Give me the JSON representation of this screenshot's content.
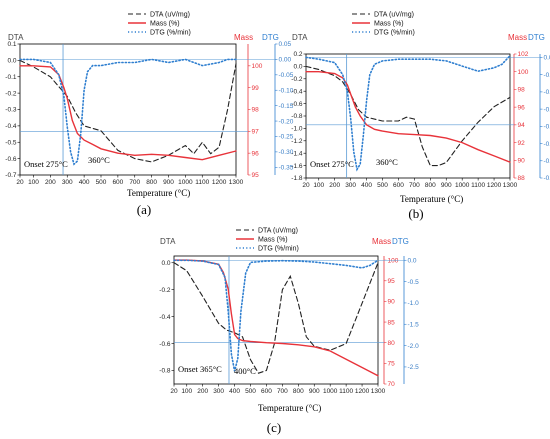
{
  "colors": {
    "dta": "#222222",
    "mass": "#e8333a",
    "dtg": "#2f7fd0",
    "guide": "#5b9bd5"
  },
  "chart_data": [
    {
      "type": "line",
      "label": "(a)",
      "xlabel": "Temperature (°C)",
      "x_ticks": [
        20,
        100,
        200,
        300,
        400,
        500,
        600,
        700,
        800,
        900,
        1000,
        1100,
        1200,
        1300
      ],
      "axes": {
        "left": {
          "title": "DTA",
          "ylim": [
            -0.7,
            0.1
          ],
          "ticks": [
            -0.7,
            -0.6,
            -0.5,
            -0.4,
            -0.3,
            -0.2,
            -0.1,
            0.0,
            0.1
          ],
          "tick_labels": [
            "-0.7",
            "-0.6",
            "-0.5",
            "-0.4",
            "-0.3",
            "-0.2",
            "-0.1",
            "0.0",
            "0.1"
          ]
        },
        "mid": {
          "title": "Mass",
          "ylim": [
            95,
            101
          ],
          "ticks": [
            95,
            96,
            97,
            98,
            99,
            100
          ],
          "tick_labels": [
            "95",
            "96",
            "97",
            "98",
            "99",
            "100"
          ]
        },
        "right": {
          "title": "DTG",
          "ylim": [
            -0.375,
            0.05
          ],
          "ticks": [
            0.05,
            0,
            -0.05,
            -0.1,
            -0.15,
            -0.2,
            -0.25,
            -0.3,
            -0.35
          ],
          "tick_labels": [
            "0.05",
            "0.00",
            "-0.05",
            "-0.10",
            "-0.15",
            "-0.20",
            "-0.25",
            "-0.30",
            "-0.35"
          ]
        }
      },
      "annotations": [
        "Onset 275°C",
        "360°C"
      ],
      "onset_x": 275,
      "hline_mass": 97.0,
      "series": [
        {
          "name": "DTA (uV/mg)",
          "axis": "left",
          "x": [
            20,
            100,
            200,
            250,
            300,
            350,
            400,
            500,
            600,
            700,
            800,
            900,
            1000,
            1050,
            1100,
            1150,
            1200,
            1250,
            1300
          ],
          "y": [
            0.0,
            -0.04,
            -0.1,
            -0.16,
            -0.22,
            -0.32,
            -0.4,
            -0.43,
            -0.55,
            -0.6,
            -0.62,
            -0.58,
            -0.52,
            -0.57,
            -0.5,
            -0.57,
            -0.53,
            -0.3,
            -0.02
          ]
        },
        {
          "name": "Mass (%)",
          "axis": "mid",
          "x": [
            20,
            100,
            200,
            250,
            280,
            300,
            330,
            360,
            400,
            450,
            500,
            600,
            700,
            800,
            900,
            1000,
            1100,
            1200,
            1300
          ],
          "y": [
            100.0,
            100.0,
            99.95,
            99.6,
            99.0,
            98.5,
            97.5,
            96.9,
            96.6,
            96.4,
            96.2,
            96.0,
            95.9,
            95.95,
            95.9,
            95.8,
            95.7,
            95.9,
            96.1
          ]
        },
        {
          "name": "DTG (%/min)",
          "axis": "right",
          "x": [
            20,
            100,
            200,
            250,
            280,
            300,
            320,
            340,
            360,
            380,
            400,
            420,
            450,
            500,
            600,
            700,
            800,
            900,
            1000,
            1100,
            1200,
            1250,
            1300
          ],
          "y": [
            0.0,
            0.0,
            -0.01,
            -0.05,
            -0.12,
            -0.22,
            -0.3,
            -0.34,
            -0.33,
            -0.24,
            -0.1,
            -0.04,
            -0.02,
            -0.02,
            -0.01,
            -0.01,
            0.0,
            -0.01,
            0.0,
            -0.02,
            -0.01,
            0.0,
            0.0
          ]
        }
      ]
    },
    {
      "type": "line",
      "label": "(b)",
      "xlabel": "Temperature (°C)",
      "x_ticks": [
        20,
        100,
        200,
        300,
        400,
        500,
        600,
        700,
        800,
        900,
        1000,
        1100,
        1200,
        1300
      ],
      "axes": {
        "left": {
          "title": "DTA",
          "ylim": [
            -1.8,
            0.2
          ],
          "ticks": [
            -1.8,
            -1.6,
            -1.4,
            -1.2,
            -1.0,
            -0.8,
            -0.6,
            -0.4,
            -0.2,
            0.0,
            0.2
          ],
          "tick_labels": [
            "-1.8",
            "-1.6",
            "-1.4",
            "-1.2",
            "-1.0",
            "-0.8",
            "-0.6",
            "-0.4",
            "-0.2",
            "0.0",
            "0.2"
          ]
        },
        "mid": {
          "title": "Mass",
          "ylim": [
            88,
            102
          ],
          "ticks": [
            88,
            90,
            92,
            94,
            96,
            98,
            100,
            102
          ],
          "tick_labels": [
            "88",
            "90",
            "92",
            "94",
            "96",
            "98",
            "100",
            "102"
          ]
        },
        "right": {
          "title": "DTG",
          "ylim": [
            -0.7,
            0.02
          ],
          "ticks": [
            0.0,
            -0.1,
            -0.2,
            -0.3,
            -0.4,
            -0.5,
            -0.6,
            -0.7
          ],
          "tick_labels": [
            "0.0",
            "-0.1",
            "-0.2",
            "-0.3",
            "-0.4",
            "-0.5",
            "-0.6",
            "-0.7"
          ]
        }
      },
      "annotations": [
        "Onset 275°C",
        "360°C"
      ],
      "onset_x": 275,
      "hline_mass": 94.0,
      "series": [
        {
          "name": "DTA (uV/mg)",
          "axis": "left",
          "x": [
            20,
            100,
            200,
            250,
            300,
            350,
            400,
            500,
            600,
            650,
            700,
            750,
            800,
            850,
            900,
            1000,
            1100,
            1200,
            1300
          ],
          "y": [
            0.0,
            -0.05,
            -0.15,
            -0.25,
            -0.45,
            -0.7,
            -0.82,
            -0.88,
            -0.88,
            -0.82,
            -0.85,
            -1.3,
            -1.6,
            -1.6,
            -1.55,
            -1.2,
            -0.9,
            -0.65,
            -0.5
          ]
        },
        {
          "name": "Mass (%)",
          "axis": "mid",
          "x": [
            20,
            100,
            200,
            250,
            280,
            300,
            330,
            360,
            400,
            450,
            500,
            600,
            700,
            800,
            900,
            1000,
            1100,
            1200,
            1300
          ],
          "y": [
            100.0,
            100.0,
            99.8,
            99.3,
            98.5,
            97.5,
            96.0,
            95.0,
            94.0,
            93.5,
            93.3,
            93.0,
            92.9,
            92.8,
            92.5,
            92.0,
            91.2,
            90.5,
            89.8
          ]
        },
        {
          "name": "DTG (%/min)",
          "axis": "right",
          "x": [
            20,
            100,
            200,
            250,
            280,
            300,
            320,
            340,
            360,
            380,
            400,
            420,
            450,
            500,
            600,
            700,
            800,
            900,
            1000,
            1100,
            1200,
            1250,
            1300
          ],
          "y": [
            0.0,
            -0.01,
            -0.03,
            -0.1,
            -0.2,
            -0.35,
            -0.55,
            -0.65,
            -0.62,
            -0.45,
            -0.25,
            -0.1,
            -0.04,
            -0.02,
            -0.01,
            -0.01,
            -0.01,
            -0.02,
            -0.05,
            -0.08,
            -0.06,
            -0.04,
            0.01
          ]
        }
      ]
    },
    {
      "type": "line",
      "label": "(c)",
      "xlabel": "Temperature (°C)",
      "x_ticks": [
        20,
        100,
        200,
        300,
        400,
        500,
        600,
        700,
        800,
        900,
        1000,
        1100,
        1200,
        1300
      ],
      "axes": {
        "left": {
          "title": "DTA",
          "ylim": [
            -0.9,
            0.05
          ],
          "ticks": [
            -0.8,
            -0.6,
            -0.4,
            -0.2,
            0.0
          ],
          "tick_labels": [
            "-0.8",
            "-0.6",
            "-0.4",
            "-0.2",
            "0.0"
          ]
        },
        "mid": {
          "title": "Mass",
          "ylim": [
            70,
            101
          ],
          "ticks": [
            70,
            75,
            80,
            85,
            90,
            95,
            100
          ],
          "tick_labels": [
            "70",
            "75",
            "80",
            "85",
            "90",
            "95",
            "100"
          ]
        },
        "right": {
          "title": "DTG",
          "ylim": [
            -2.9,
            0.1
          ],
          "ticks": [
            0.0,
            -0.5,
            -1.0,
            -1.5,
            -2.0,
            -2.5
          ],
          "tick_labels": [
            "0.0",
            "-0.5",
            "-1.0",
            "-1.5",
            "-2.0",
            "-2.5"
          ]
        }
      },
      "annotations": [
        "Onset 365°C",
        "400°C"
      ],
      "onset_x": 365,
      "hline_mass": 80.0,
      "series": [
        {
          "name": "DTA (uV/mg)",
          "axis": "left",
          "x": [
            20,
            100,
            200,
            300,
            350,
            400,
            450,
            500,
            550,
            600,
            650,
            700,
            750,
            800,
            850,
            900,
            1000,
            1100,
            1200,
            1300
          ],
          "y": [
            0.0,
            -0.06,
            -0.25,
            -0.45,
            -0.5,
            -0.52,
            -0.55,
            -0.72,
            -0.82,
            -0.8,
            -0.6,
            -0.2,
            -0.1,
            -0.3,
            -0.55,
            -0.62,
            -0.65,
            -0.6,
            -0.3,
            0.0
          ]
        },
        {
          "name": "Mass (%)",
          "axis": "mid",
          "x": [
            20,
            100,
            200,
            300,
            330,
            360,
            380,
            400,
            420,
            450,
            500,
            600,
            700,
            800,
            900,
            1000,
            1100,
            1200,
            1300
          ],
          "y": [
            100.0,
            100.0,
            99.8,
            99.0,
            97.0,
            93.0,
            87.0,
            82.0,
            81.0,
            80.5,
            80.3,
            80.0,
            79.8,
            79.5,
            79.0,
            78.0,
            76.0,
            74.0,
            72.0
          ]
        },
        {
          "name": "DTG (%/min)",
          "axis": "right",
          "x": [
            20,
            100,
            200,
            300,
            340,
            360,
            380,
            400,
            420,
            440,
            470,
            500,
            600,
            700,
            800,
            900,
            1000,
            1100,
            1200,
            1250,
            1300
          ],
          "y": [
            0.0,
            0.0,
            -0.02,
            -0.1,
            -0.4,
            -1.2,
            -2.2,
            -2.6,
            -2.3,
            -1.2,
            -0.3,
            -0.05,
            -0.02,
            -0.01,
            -0.02,
            -0.04,
            -0.08,
            -0.12,
            -0.18,
            -0.12,
            0.0
          ]
        }
      ]
    }
  ]
}
